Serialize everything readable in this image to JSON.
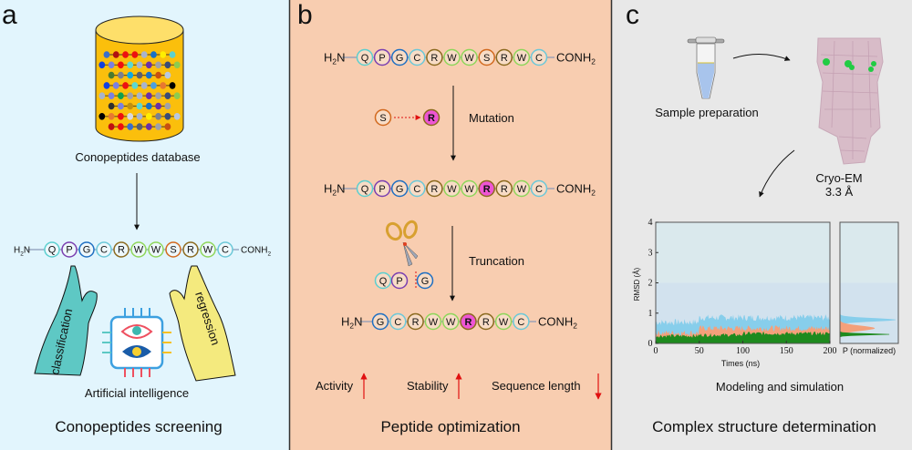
{
  "panel_a": {
    "letter": "a",
    "database_label": "Conopeptides database",
    "sequence": [
      "Q",
      "P",
      "G",
      "C",
      "R",
      "W",
      "W",
      "S",
      "R",
      "W",
      "C"
    ],
    "n_term": "H2N",
    "c_term": "CONH2",
    "left_hand_label": "classification",
    "right_hand_label": "regression",
    "ai_label": "Artificial intelligence",
    "title": "Conopeptides screening",
    "bead_rows": [
      [
        "#3a6fcc",
        "#b01010",
        "#ee1010",
        "#ee1010",
        "#a8b4cc",
        "#1870c8",
        "#ffee00",
        "#5cd0d0"
      ],
      [
        "#1040e0",
        "#7a80e0",
        "#ee1010",
        "#5cd8d0",
        "#a8b4cc",
        "#6a30a8",
        "#a0a0a8",
        "#3a4c78",
        "#8ccc50"
      ],
      [
        "#4a7a30",
        "#7a8090",
        "#10a8e0",
        "#5a6070",
        "#1870c8",
        "#c85010",
        "#b8c8e0"
      ],
      [
        "#1040e0",
        "#7a80e0",
        "#ee1010",
        "#5cd8d0",
        "#a8b4cc",
        "#4aa0e0",
        "#e87830",
        "#000000"
      ],
      [
        "#a8b4cc",
        "#7a80e0",
        "#10a050",
        "#a0a0a8",
        "#a8b4cc",
        "#6a30a8",
        "#a0a0a8",
        "#3a4c78",
        "#8ccc50"
      ],
      [
        "#303030",
        "#7a80e0",
        "#c09010",
        "#5cd8d0",
        "#1870c8",
        "#6a30a8",
        "#a0a0a8"
      ],
      [
        "#000000",
        "#e87830",
        "#ee1010",
        "#d8d8e0",
        "#a8b4cc",
        "#ffee00",
        "#7a8090",
        "#3a4c78",
        "#b8c8e0"
      ],
      [
        "#c01010",
        "#ee1010",
        "#3a6fcc",
        "#5a6070",
        "#6a30a8",
        "#a0a0a8",
        "#c85010"
      ]
    ]
  },
  "panel_b": {
    "letter": "b",
    "n_term": "H2N",
    "c_term": "CONH2",
    "original_sequence": [
      "Q",
      "P",
      "G",
      "C",
      "R",
      "W",
      "W",
      "S",
      "R",
      "W",
      "C"
    ],
    "mutated_sequence": [
      "Q",
      "P",
      "G",
      "C",
      "R",
      "W",
      "W",
      "R*",
      "R",
      "W",
      "C"
    ],
    "truncated_sequence": [
      "G",
      "C",
      "R",
      "W",
      "W",
      "R*",
      "R",
      "W",
      "C"
    ],
    "mutation_from": "S",
    "mutation_to": "R",
    "mutation_label": "Mutation",
    "truncation_label": "Truncation",
    "removed_residues": [
      "Q",
      "P"
    ],
    "kept_residue": "G",
    "outcomes": [
      {
        "label": "Activity",
        "direction": "up"
      },
      {
        "label": "Stability",
        "direction": "up"
      },
      {
        "label": "Sequence length",
        "direction": "down"
      }
    ],
    "title": "Peptide optimization"
  },
  "panel_c": {
    "letter": "c",
    "sample_label": "Sample preparation",
    "cryo_label": "Cryo-EM",
    "resolution": "3.3 Å",
    "modeling_label": "Modeling and simulation",
    "title": "Complex structure determination"
  },
  "residue_colors": {
    "Q": "#5ccfcf",
    "P": "#7a3fb0",
    "G": "#1f6fc2",
    "C": "#6cc8d8",
    "R": "#8b6a1f",
    "W": "#8ed65a",
    "S": "#d2691e",
    "mutant_fill": "#ee55d4"
  },
  "chart_data": {
    "type": "area",
    "ylabel": "RMSD (Å)",
    "xlabel": "Times (ns)",
    "side_xlabel": "P (normalized)",
    "xlim": [
      0,
      200
    ],
    "ylim": [
      0,
      4
    ],
    "xticks": [
      "0",
      "50",
      "100",
      "150",
      "200"
    ],
    "yticks": [
      "0",
      "1",
      "2",
      "3",
      "4"
    ],
    "shaded_band": [
      0,
      2
    ],
    "series": [
      {
        "color": "#87ceeb",
        "mean": [
          0.7,
          0.85,
          0.85,
          0.85,
          0.9
        ],
        "peak": 0.78
      },
      {
        "color": "#f4a07a",
        "mean": [
          0.35,
          0.5,
          0.5,
          0.5,
          0.5
        ],
        "peak": 0.5
      },
      {
        "color": "#1e8a1e",
        "mean": [
          0.25,
          0.28,
          0.33,
          0.33,
          0.3
        ],
        "peak": 0.3
      }
    ]
  },
  "colors": {
    "panel_a_bg": "#e2f5fd",
    "panel_b_bg": "#f8cdb0",
    "panel_c_bg": "#e8e8e8"
  }
}
